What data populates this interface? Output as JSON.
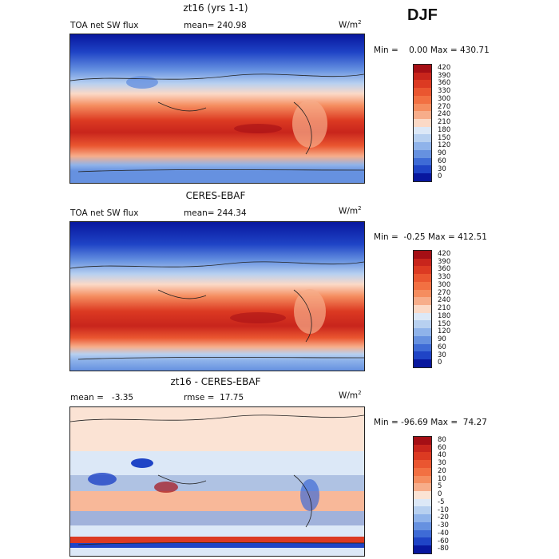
{
  "season": "DJF",
  "panels": [
    {
      "title": "zt16 (yrs 1-1)",
      "left_label": "TOA net SW flux",
      "center_label": "mean= 240.98",
      "units": "W/m",
      "units_exp": "2",
      "range_text": "Min =    0.00 Max = 430.71",
      "colorbar_ticks": [
        "420",
        "390",
        "360",
        "330",
        "300",
        "270",
        "240",
        "210",
        "180",
        "150",
        "120",
        "90",
        "60",
        "30",
        "0"
      ],
      "colors": [
        "#a50f15",
        "#c8251c",
        "#dc3a22",
        "#ea5630",
        "#f27042",
        "#f58d5f",
        "#f7ad8a",
        "#fbd9c6",
        "#dce8f7",
        "#b7d0f0",
        "#8fb3ea",
        "#6691e0",
        "#3e6bd6",
        "#1f44c6",
        "#08179e"
      ]
    },
    {
      "title": "CERES-EBAF",
      "left_label": "TOA net SW flux",
      "center_label": "mean= 244.34",
      "units": "W/m",
      "units_exp": "2",
      "range_text": "Min =  -0.25 Max = 412.51",
      "colorbar_ticks": [
        "420",
        "390",
        "360",
        "330",
        "300",
        "270",
        "240",
        "210",
        "180",
        "150",
        "120",
        "90",
        "60",
        "30",
        "0"
      ],
      "colors": [
        "#a50f15",
        "#c8251c",
        "#dc3a22",
        "#ea5630",
        "#f27042",
        "#f58d5f",
        "#f7ad8a",
        "#fbd9c6",
        "#dce8f7",
        "#b7d0f0",
        "#8fb3ea",
        "#6691e0",
        "#3e6bd6",
        "#1f44c6",
        "#08179e"
      ]
    },
    {
      "title": "zt16 - CERES-EBAF",
      "left_label": "mean =   -3.35",
      "center_label": "rmse =  17.75",
      "units": "W/m",
      "units_exp": "2",
      "range_text": "Min = -96.69 Max =  74.27",
      "colorbar_ticks": [
        "80",
        "60",
        "40",
        "30",
        "20",
        "10",
        "5",
        "0",
        "-5",
        "-10",
        "-20",
        "-30",
        "-40",
        "-60",
        "-80"
      ],
      "colors": [
        "#a50f15",
        "#c8251c",
        "#dc3a22",
        "#ea5630",
        "#f27042",
        "#f58d5f",
        "#f7ad8a",
        "#fbe3d4",
        "#dce8f7",
        "#b7d0f0",
        "#8fb3ea",
        "#6691e0",
        "#3e6bd6",
        "#1f44c6",
        "#08179e"
      ]
    }
  ]
}
